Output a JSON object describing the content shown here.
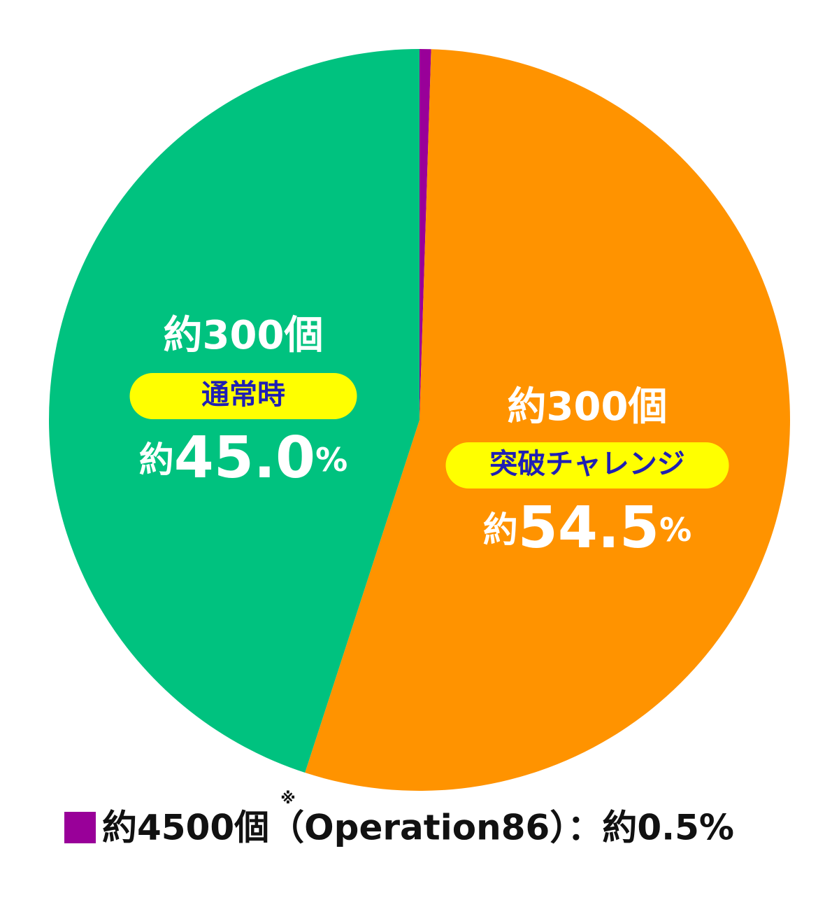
{
  "chart_data": {
    "type": "pie",
    "start_angle": 0,
    "direction": "clockwise",
    "slices": [
      {
        "legend": "約4500個（Operation86）：約0.5%",
        "legend_note": "※",
        "value": 0.5,
        "color": "#990099"
      },
      {
        "name": "突破チャレンジ",
        "count_label": "約300個",
        "value": 54.5,
        "value_label": "約54.5%",
        "color": "#ff9300"
      },
      {
        "name": "通常時",
        "count_label": "約300個",
        "value": 45.0,
        "value_label": "約45.0%",
        "color": "#00c27f"
      }
    ],
    "label_fill": "#ffffff",
    "pill_color": "#ffff00",
    "name_color": "#1f1fb4"
  }
}
